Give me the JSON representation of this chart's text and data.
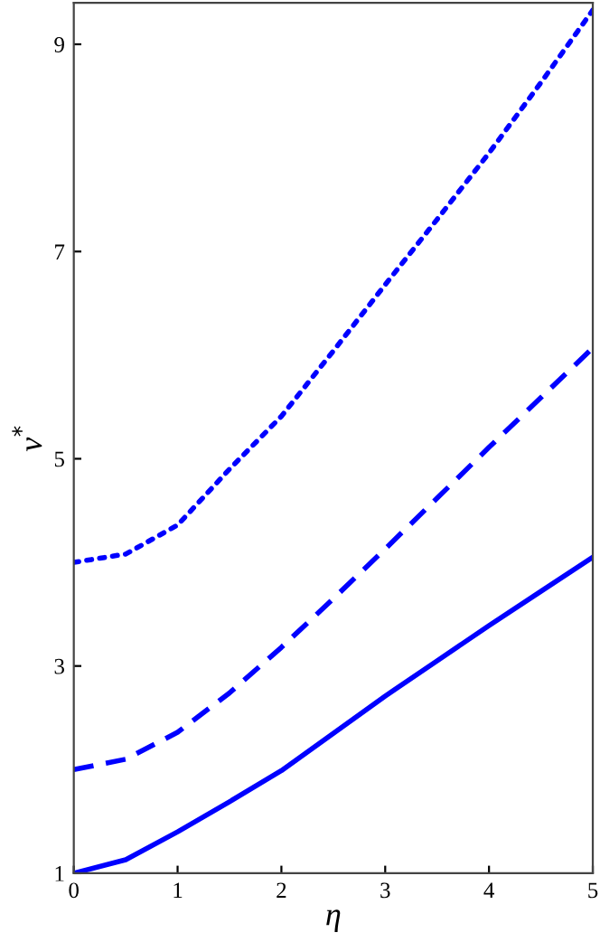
{
  "chart_data": {
    "type": "line",
    "xlabel": "η",
    "ylabel": "ν$^{*}$",
    "x": [
      0,
      0.5,
      1,
      1.5,
      2,
      2.5,
      3,
      3.5,
      4,
      4.5,
      5
    ],
    "series": [
      {
        "color": "#0000ff",
        "line_style": "solid",
        "values": [
          1,
          1.13,
          1.4,
          1.69,
          1.99,
          2.35,
          2.71,
          3.05,
          3.39,
          3.72,
          4.05
        ]
      },
      {
        "color": "#0000ff",
        "line_style": "dashed",
        "values": [
          2,
          2.1,
          2.36,
          2.74,
          3.18,
          3.65,
          4.13,
          4.62,
          5.11,
          5.59,
          6.07
        ]
      },
      {
        "color": "#0000ff",
        "line_style": "dotted",
        "values": [
          4,
          4.08,
          4.36,
          4.9,
          5.41,
          6.04,
          6.68,
          7.31,
          7.95,
          8.63,
          9.33
        ]
      }
    ],
    "xlim": [
      0,
      5
    ],
    "ylim": [
      1,
      9.4
    ],
    "xticks": [
      0,
      1,
      2,
      3,
      4,
      5
    ],
    "yticks": [
      1,
      3,
      5,
      7,
      9
    ],
    "grid": false,
    "legend": false
  }
}
